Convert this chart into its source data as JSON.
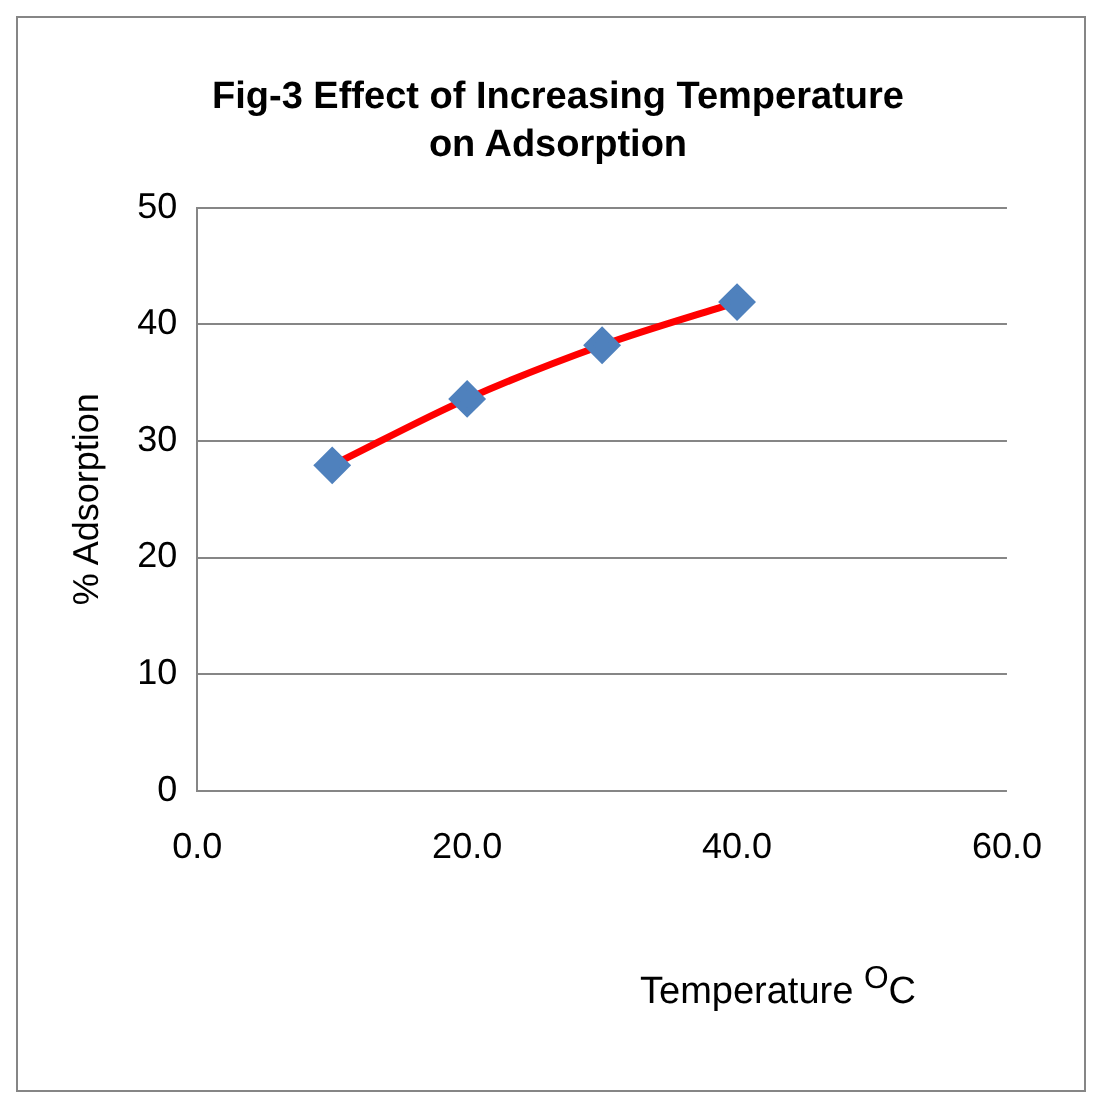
{
  "chart_data": {
    "type": "line",
    "title": "Fig-3 Effect of Increasing Temperature on Adsorption",
    "xlabel": "Temperature $^{O}$C",
    "ylabel": "% Adsorption",
    "x": [
      10,
      20,
      30,
      40
    ],
    "series": [
      {
        "color": "#ff0000",
        "colors": [
          "#4f81bd",
          "#4f81bd",
          "#4f81bd",
          "#4f81bd"
        ],
        "values": [
          27.9,
          33.6,
          38.2,
          41.9
        ]
      }
    ],
    "xlim": [
      0,
      60
    ],
    "xticks": [
      {
        "value": 0,
        "label": "0.0"
      },
      {
        "value": 20,
        "label": "20.0"
      },
      {
        "value": 40,
        "label": "40.0"
      },
      {
        "value": 60,
        "label": "60.0"
      }
    ],
    "ylim": [
      0,
      50
    ],
    "yticks": [
      0,
      10,
      20,
      30,
      40,
      50
    ],
    "grid": "y",
    "legend": false,
    "marker": "diamond",
    "line_style": "solid"
  }
}
